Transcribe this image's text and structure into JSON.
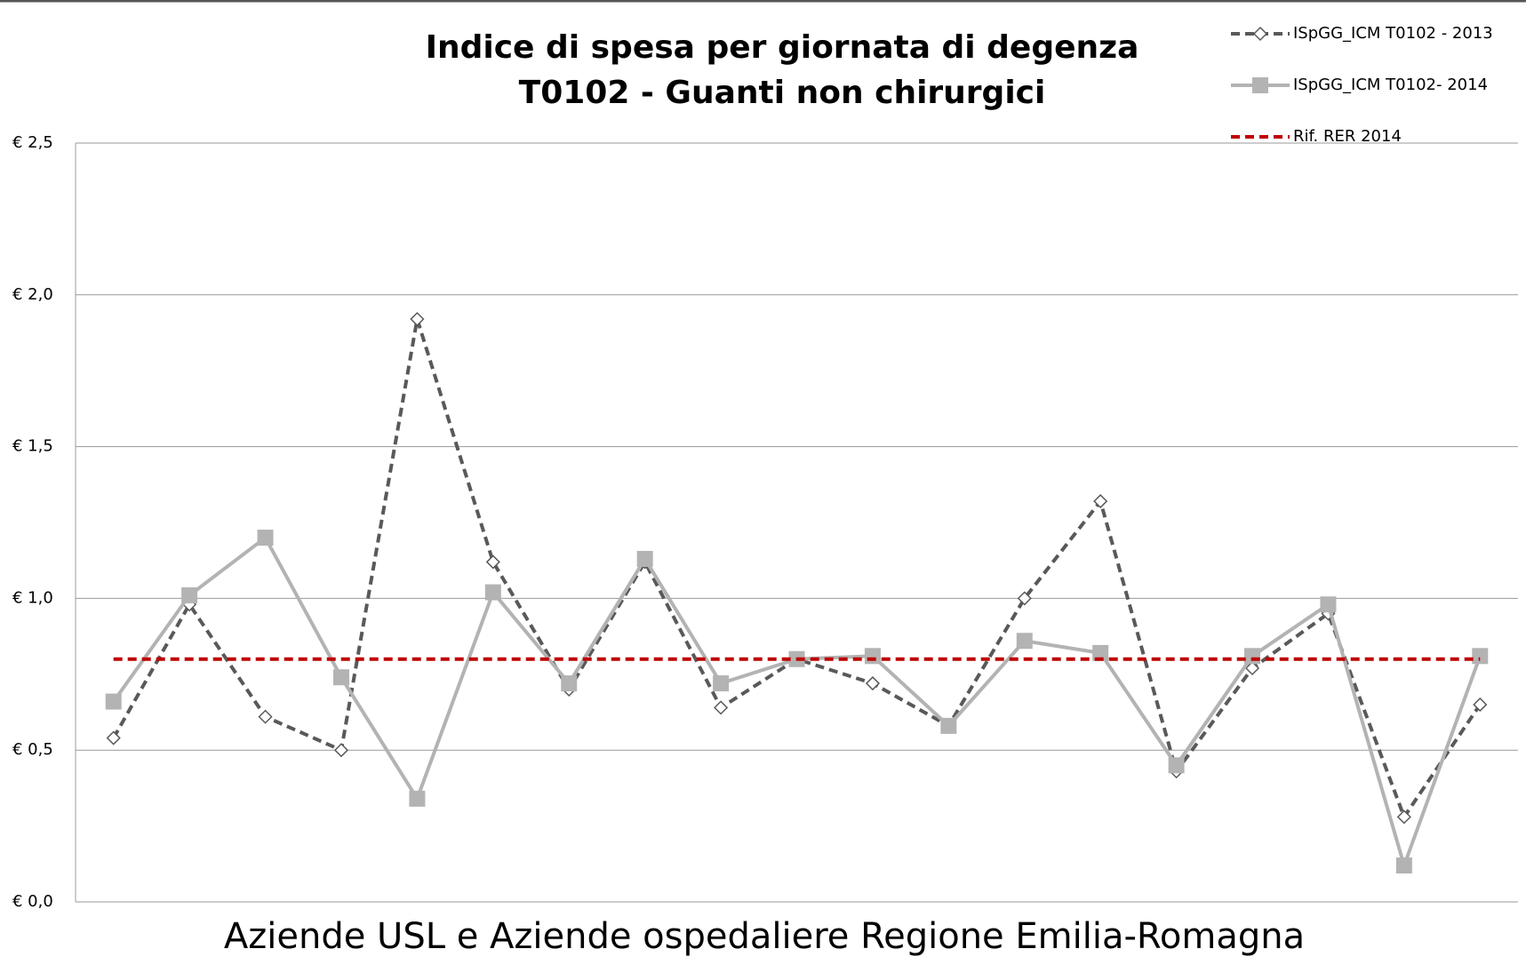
{
  "chart_data": {
    "type": "line",
    "title": "Indice di spesa per giornata di degenza",
    "subtitle": "T0102 - Guanti non chirurgici",
    "x_label": "Aziende USL e Aziende ospedaliere Regione Emilia-Romagna",
    "categories": [
      null,
      null,
      null,
      null,
      null,
      null,
      null,
      null,
      null,
      null,
      null,
      null,
      null,
      null,
      null,
      null,
      null,
      null,
      null
    ],
    "series": [
      {
        "name": "ISpGG_ICM T0102 - 2013",
        "color": "#595959",
        "dash": true,
        "marker": "diamond",
        "values": [
          0.54,
          0.98,
          0.61,
          0.5,
          1.92,
          1.12,
          0.7,
          1.12,
          0.64,
          0.8,
          0.72,
          0.58,
          1.0,
          1.32,
          0.43,
          0.77,
          0.95,
          0.28,
          0.65
        ]
      },
      {
        "name": "ISpGG_ICM T0102- 2014",
        "color": "#b3b3b3",
        "dash": false,
        "marker": "square",
        "values": [
          0.66,
          1.01,
          1.2,
          0.74,
          0.34,
          1.02,
          0.72,
          1.13,
          0.72,
          0.8,
          0.81,
          0.58,
          0.86,
          0.82,
          0.45,
          0.81,
          0.98,
          0.12,
          0.81
        ]
      },
      {
        "name": "Rif. RER 2014",
        "color": "#c00000",
        "dash": true,
        "marker": null,
        "values": [
          0.8,
          0.8,
          0.8,
          0.8,
          0.8,
          0.8,
          0.8,
          0.8,
          0.8,
          0.8,
          0.8,
          0.8,
          0.8,
          0.8,
          0.8,
          0.8,
          0.8,
          0.8,
          0.8
        ]
      }
    ],
    "ylim": [
      0,
      2.5
    ],
    "yticks": [
      {
        "value": 0,
        "label": "€ 0,0"
      },
      {
        "value": 0.5,
        "label": "€ 0,5"
      },
      {
        "value": 1,
        "label": "€ 1,0"
      },
      {
        "value": 1.5,
        "label": "€ 1,5"
      },
      {
        "value": 2,
        "label": "€ 2,0"
      },
      {
        "value": 2.5,
        "label": "€ 2,5"
      }
    ],
    "grid": true,
    "legend": "top-right"
  }
}
